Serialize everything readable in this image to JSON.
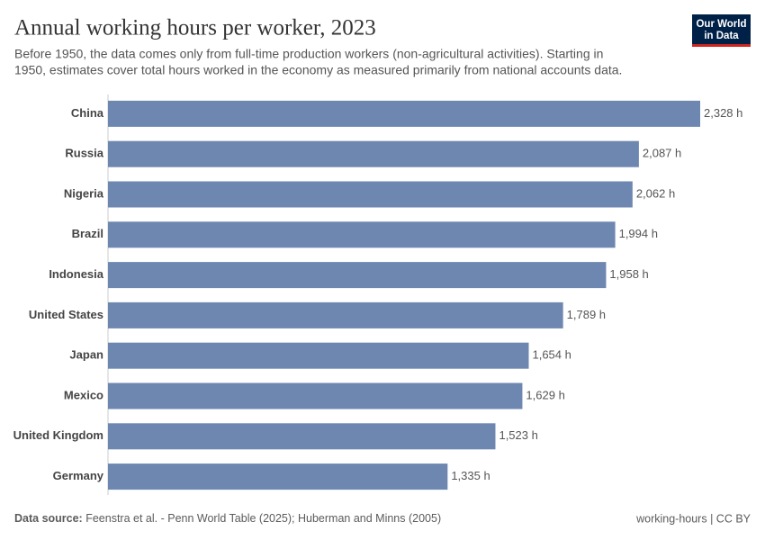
{
  "chart_data": {
    "type": "bar",
    "orientation": "horizontal",
    "title": "Annual working hours per worker, 2023",
    "subtitle": [
      "Before 1950, the data comes only from full-time production workers (non-agricultural activities). Starting in",
      "1950, estimates cover total hours worked in the economy as measured primarily from national accounts data."
    ],
    "categories": [
      "China",
      "Russia",
      "Nigeria",
      "Brazil",
      "Indonesia",
      "United States",
      "Japan",
      "Mexico",
      "United Kingdom",
      "Germany"
    ],
    "values": [
      2328,
      2087,
      2062,
      1994,
      1958,
      1789,
      1654,
      1629,
      1523,
      1335
    ],
    "value_labels": [
      "2,328 h",
      "2,087 h",
      "2,062 h",
      "1,994 h",
      "1,958 h",
      "1,789 h",
      "1,654 h",
      "1,629 h",
      "1,523 h",
      "1,335 h"
    ],
    "color": "#6d87b0",
    "xlim": [
      0,
      2328
    ],
    "source_label": "Data source:",
    "source": "Feenstra et al. - Penn World Table (2025); Huberman and Minns (2005)",
    "footer_right": "working-hours | CC BY",
    "logo": [
      "Our World",
      "in Data"
    ]
  }
}
